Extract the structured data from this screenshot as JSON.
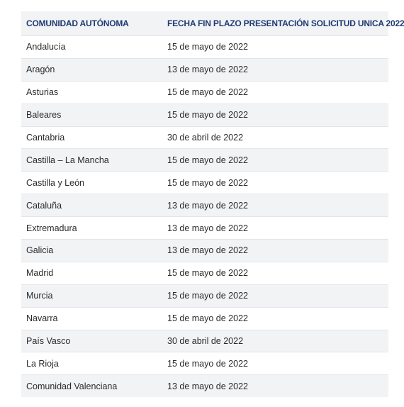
{
  "table": {
    "headers": [
      "COMUNIDAD AUTÓNOMA",
      "FECHA FIN PLAZO PRESENTACIÓN SOLICITUD UNICA 2022"
    ],
    "rows": [
      [
        "Andalucía",
        "15 de mayo de 2022"
      ],
      [
        "Aragón",
        "13 de mayo de 2022"
      ],
      [
        "Asturias",
        "15 de mayo de 2022"
      ],
      [
        "Baleares",
        "15 de mayo de 2022"
      ],
      [
        "Cantabria",
        "30 de abril de 2022"
      ],
      [
        "Castilla – La Mancha",
        "15 de mayo de 2022"
      ],
      [
        "Castilla y León",
        "15 de mayo de 2022"
      ],
      [
        "Cataluña",
        "13 de mayo de 2022"
      ],
      [
        "Extremadura",
        "13 de mayo de 2022"
      ],
      [
        "Galicia",
        "13 de mayo de 2022"
      ],
      [
        "Madrid",
        "15 de mayo de 2022"
      ],
      [
        "Murcia",
        "15 de mayo de 2022"
      ],
      [
        "Navarra",
        "15 de mayo de 2022"
      ],
      [
        "País Vasco",
        "30 de abril de 2022"
      ],
      [
        "La Rioja",
        "15 de mayo de 2022"
      ],
      [
        "Comunidad Valenciana",
        "13 de mayo de 2022"
      ]
    ]
  },
  "colors": {
    "header_text": "#1f3a74",
    "stripe": "#f2f3f5",
    "body_text": "#2b2b2b"
  }
}
